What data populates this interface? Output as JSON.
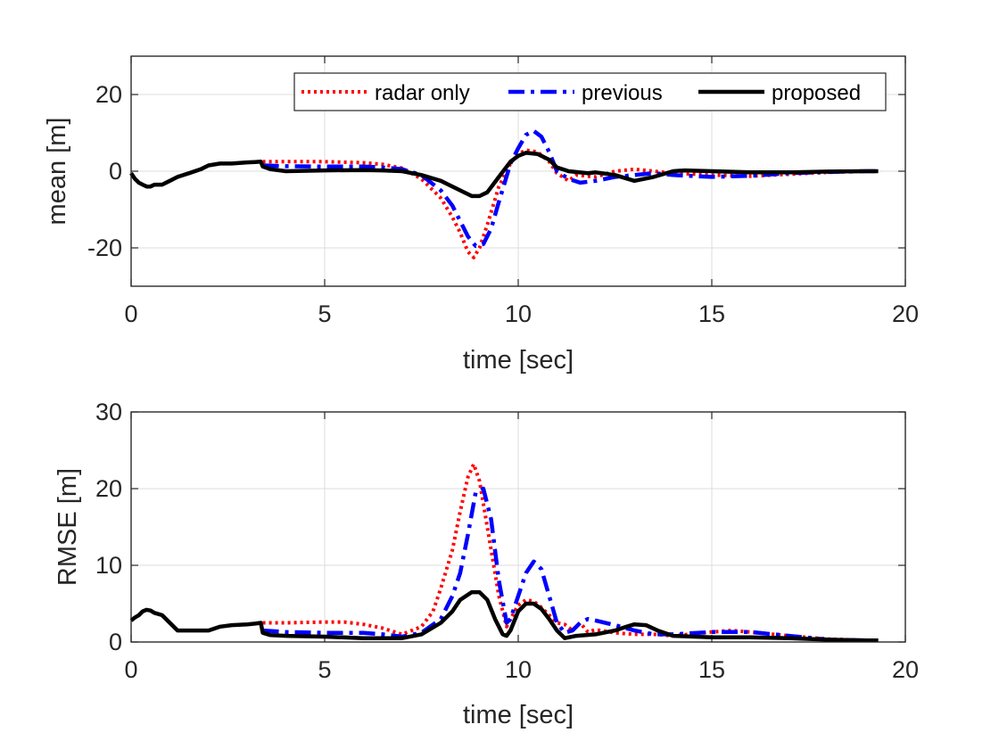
{
  "colors": {
    "radar_only": "#ff0000",
    "previous": "#0000ff",
    "proposed": "#000000"
  },
  "chart_data": [
    {
      "type": "line",
      "xlabel": "time [sec]",
      "ylabel": "mean [m]",
      "xlim": [
        0,
        20
      ],
      "ylim": [
        -30,
        30
      ],
      "xticks": [
        0,
        5,
        10,
        15,
        20
      ],
      "yticks": [
        -20,
        0,
        20
      ],
      "xtick_labels": [
        "0",
        "5",
        "10",
        "15",
        "20"
      ],
      "ytick_labels": [
        "-20",
        "0",
        "20"
      ],
      "grid": true,
      "legend": {
        "placement": "top-right",
        "orientation": "horizontal"
      },
      "series": [
        {
          "name": "radar only",
          "style": "dotted",
          "color": "#ff0000",
          "x": [
            3.4,
            4,
            5,
            6,
            6.5,
            7,
            7.5,
            8,
            8.3,
            8.5,
            8.7,
            8.85,
            9,
            9.2,
            9.5,
            9.8,
            10,
            10.2,
            10.5,
            10.8,
            11,
            11.3,
            11.5,
            12,
            12.5,
            13,
            13.5,
            14,
            15,
            16,
            17,
            18,
            19,
            19.3
          ],
          "y": [
            2.5,
            2.5,
            2.5,
            2.2,
            1.8,
            0.8,
            -2,
            -7,
            -12,
            -16,
            -21,
            -22.5,
            -20,
            -14,
            -4,
            2,
            4.5,
            5.5,
            5,
            2.5,
            -0.5,
            -2.5,
            -1,
            -1.5,
            0,
            0.5,
            0,
            -0.5,
            -1,
            -1.3,
            -0.8,
            -0.3,
            0,
            0
          ]
        },
        {
          "name": "previous",
          "style": "dash-dot",
          "color": "#0000ff",
          "x": [
            3.4,
            4,
            5,
            6,
            6.5,
            7,
            7.5,
            8,
            8.3,
            8.5,
            8.7,
            8.9,
            9.1,
            9.3,
            9.5,
            9.8,
            10,
            10.2,
            10.4,
            10.6,
            10.8,
            11,
            11.3,
            11.6,
            12,
            12.5,
            13,
            13.5,
            14,
            15,
            16,
            17,
            18,
            19,
            19.3
          ],
          "y": [
            1.5,
            1.3,
            1.2,
            1.2,
            1.0,
            0.5,
            -1,
            -5,
            -9,
            -13,
            -17,
            -19.5,
            -19,
            -15,
            -8,
            2,
            6,
            9.5,
            10.5,
            9,
            5,
            0,
            -2,
            -3,
            -2.5,
            -1.5,
            -1,
            -0.5,
            -1,
            -1.5,
            -1.2,
            -0.5,
            -0.2,
            0,
            0
          ]
        },
        {
          "name": "proposed",
          "style": "solid",
          "color": "#000000",
          "x": [
            0,
            0.1,
            0.2,
            0.3,
            0.4,
            0.5,
            0.6,
            0.8,
            1.0,
            1.2,
            1.5,
            1.8,
            2.0,
            2.3,
            2.6,
            3.0,
            3.2,
            3.35,
            3.4,
            3.6,
            4,
            5,
            6,
            6.5,
            7,
            7.5,
            8,
            8.5,
            8.8,
            9,
            9.2,
            9.5,
            9.8,
            10,
            10.2,
            10.5,
            10.8,
            11,
            11.3,
            11.8,
            12,
            12.5,
            13,
            13.5,
            14,
            14.3,
            15,
            16,
            17,
            18,
            19,
            19.3
          ],
          "y": [
            -0.5,
            -2,
            -3,
            -3.5,
            -4,
            -4,
            -3.5,
            -3.5,
            -2.5,
            -1.5,
            -0.5,
            0.5,
            1.5,
            2,
            2,
            2.3,
            2.4,
            2.5,
            1.2,
            0.5,
            0,
            0.2,
            0.3,
            0.2,
            0,
            -1,
            -2.5,
            -5,
            -6.5,
            -6.5,
            -5.5,
            -1.5,
            2.5,
            4,
            4.8,
            4.5,
            3,
            1,
            0,
            -0.5,
            -0.3,
            -1,
            -2.5,
            -1.5,
            0,
            0.2,
            0,
            -0.3,
            -0.3,
            -0.1,
            0,
            0
          ]
        }
      ]
    },
    {
      "type": "line",
      "xlabel": "time [sec]",
      "ylabel": "RMSE [m]",
      "xlim": [
        0,
        20
      ],
      "ylim": [
        0,
        30
      ],
      "xticks": [
        0,
        5,
        10,
        15,
        20
      ],
      "yticks": [
        0,
        10,
        20,
        30
      ],
      "xtick_labels": [
        "0",
        "5",
        "10",
        "15",
        "20"
      ],
      "ytick_labels": [
        "0",
        "10",
        "20",
        "30"
      ],
      "grid": true,
      "series": [
        {
          "name": "radar only",
          "style": "dotted",
          "color": "#ff0000",
          "x": [
            3.4,
            4,
            5,
            5.5,
            6,
            6.5,
            7,
            7.5,
            7.8,
            8,
            8.3,
            8.5,
            8.7,
            8.85,
            9,
            9.2,
            9.5,
            9.7,
            9.8,
            10,
            10.2,
            10.4,
            10.6,
            10.8,
            11,
            11.2,
            11.4,
            11.6,
            11.8,
            12,
            12.5,
            13,
            13.5,
            14,
            15,
            15.5,
            16,
            17,
            18,
            19,
            19.3
          ],
          "y": [
            2.5,
            2.5,
            2.6,
            2.6,
            2.3,
            1.8,
            1.0,
            2,
            4,
            7,
            12,
            17,
            21.5,
            23.2,
            21,
            15,
            6,
            2,
            3,
            4.8,
            5.5,
            5.3,
            4.5,
            3.5,
            2.5,
            2.3,
            1.5,
            2.5,
            1.3,
            1.6,
            1.2,
            1.0,
            1.0,
            0.8,
            1.3,
            1.5,
            1.3,
            0.8,
            0.4,
            0.2,
            0.2
          ]
        },
        {
          "name": "previous",
          "style": "dash-dot",
          "color": "#0000ff",
          "x": [
            3.4,
            4,
            5,
            6,
            6.5,
            7,
            7.5,
            8,
            8.3,
            8.5,
            8.7,
            8.9,
            9.1,
            9.3,
            9.5,
            9.7,
            9.8,
            10,
            10.2,
            10.4,
            10.6,
            10.8,
            11,
            11.2,
            11.4,
            11.6,
            11.8,
            12,
            12.5,
            13,
            13.5,
            14,
            15,
            16,
            17,
            18,
            19,
            19.3
          ],
          "y": [
            1.5,
            1.3,
            1.2,
            1.2,
            1.0,
            0.7,
            1.2,
            3,
            6,
            9,
            14,
            19.5,
            20,
            16,
            8,
            2.5,
            3,
            6,
            9,
            10.5,
            9.5,
            6,
            2.5,
            1.2,
            1.5,
            2.5,
            3,
            2.8,
            2.2,
            1.5,
            1.0,
            1.0,
            1.3,
            1.3,
            0.8,
            0.3,
            0.2,
            0.2
          ]
        },
        {
          "name": "proposed",
          "style": "solid",
          "color": "#000000",
          "x": [
            0,
            0.1,
            0.2,
            0.3,
            0.4,
            0.5,
            0.6,
            0.8,
            1.0,
            1.2,
            1.5,
            1.8,
            2.0,
            2.3,
            2.6,
            3.0,
            3.2,
            3.35,
            3.4,
            3.6,
            4,
            5,
            6,
            7,
            7.5,
            8,
            8.3,
            8.5,
            8.8,
            9,
            9.2,
            9.4,
            9.6,
            9.7,
            9.8,
            10,
            10.2,
            10.4,
            10.6,
            10.8,
            11,
            11.2,
            11.5,
            12,
            12.5,
            12.8,
            13,
            13.3,
            13.6,
            14,
            15,
            16,
            17,
            18,
            19,
            19.3
          ],
          "y": [
            2.8,
            3.2,
            3.5,
            4.0,
            4.2,
            4.1,
            3.8,
            3.5,
            2.5,
            1.5,
            1.5,
            1.5,
            1.5,
            2,
            2.2,
            2.3,
            2.4,
            2.5,
            1.2,
            0.9,
            0.8,
            0.7,
            0.5,
            0.5,
            1,
            2.5,
            4,
            5.5,
            6.5,
            6.5,
            5.5,
            3,
            1,
            0.8,
            1.5,
            4,
            5,
            5,
            4.3,
            3,
            1.5,
            0.5,
            0.8,
            1,
            1.5,
            2.0,
            2.3,
            2.2,
            1.5,
            0.8,
            0.6,
            0.6,
            0.5,
            0.3,
            0.2,
            0.2
          ]
        }
      ]
    }
  ]
}
